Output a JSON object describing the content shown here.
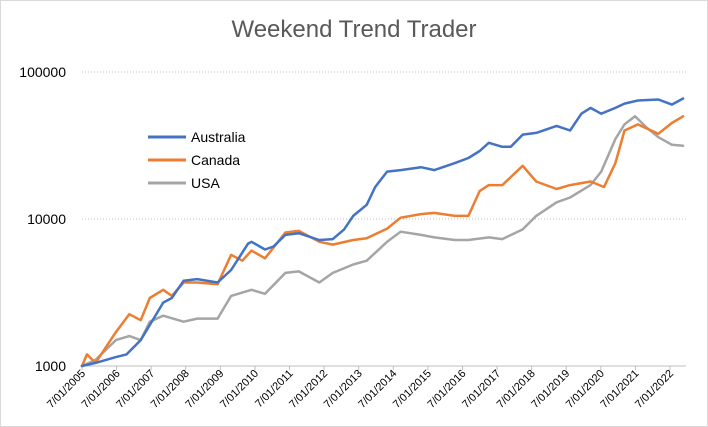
{
  "chart_data": {
    "type": "line",
    "title": "Weekend Trend Trader",
    "xlabel": "",
    "ylabel": "",
    "y_scale": "log",
    "ylim": [
      1000,
      100000
    ],
    "y_ticks": [
      "1000",
      "10000",
      "100000"
    ],
    "x_ticks": [
      "7/01/2005",
      "7/01/2006",
      "7/01/2007",
      "7/01/2008",
      "7/01/2009",
      "7/01/2010",
      "7/01/2011",
      "7/01/2012",
      "7/01/2013",
      "7/01/2014",
      "7/01/2015",
      "7/01/2016",
      "7/01/2017",
      "7/01/2018",
      "7/01/2019",
      "7/01/2020",
      "7/01/2021",
      "7/01/2022"
    ],
    "grid": "horizontal-dotted",
    "legend_position": "left",
    "series": [
      {
        "name": "Australia",
        "color": "#4472c4",
        "points": [
          [
            "2005-01-07",
            1000
          ],
          [
            "2005-06-01",
            1050
          ],
          [
            "2006-01-07",
            1150
          ],
          [
            "2006-05-01",
            1200
          ],
          [
            "2006-10-01",
            1500
          ],
          [
            "2007-01-07",
            1900
          ],
          [
            "2007-06-01",
            2700
          ],
          [
            "2007-09-01",
            2900
          ],
          [
            "2008-01-07",
            3800
          ],
          [
            "2008-06-01",
            3900
          ],
          [
            "2009-01-07",
            3700
          ],
          [
            "2009-06-01",
            4500
          ],
          [
            "2009-12-01",
            6800
          ],
          [
            "2010-01-07",
            7000
          ],
          [
            "2010-06-01",
            6200
          ],
          [
            "2010-09-01",
            6500
          ],
          [
            "2011-01-07",
            7800
          ],
          [
            "2011-06-01",
            8000
          ],
          [
            "2012-01-07",
            7200
          ],
          [
            "2012-06-01",
            7300
          ],
          [
            "2012-10-01",
            8500
          ],
          [
            "2013-01-07",
            10500
          ],
          [
            "2013-06-01",
            12500
          ],
          [
            "2013-09-01",
            16500
          ],
          [
            "2014-01-07",
            21000
          ],
          [
            "2014-06-01",
            21500
          ],
          [
            "2015-01-07",
            22500
          ],
          [
            "2015-06-01",
            21500
          ],
          [
            "2016-01-07",
            24000
          ],
          [
            "2016-06-01",
            26000
          ],
          [
            "2016-10-01",
            29000
          ],
          [
            "2017-01-07",
            33000
          ],
          [
            "2017-06-01",
            31000
          ],
          [
            "2017-09-01",
            31000
          ],
          [
            "2018-01-07",
            37500
          ],
          [
            "2018-06-01",
            38500
          ],
          [
            "2019-01-07",
            43000
          ],
          [
            "2019-06-01",
            40000
          ],
          [
            "2019-10-01",
            52000
          ],
          [
            "2020-01-07",
            57000
          ],
          [
            "2020-05-01",
            52000
          ],
          [
            "2020-10-01",
            57000
          ],
          [
            "2021-01-07",
            61000
          ],
          [
            "2021-06-01",
            64000
          ],
          [
            "2022-01-07",
            65000
          ],
          [
            "2022-06-01",
            60000
          ],
          [
            "2022-10-01",
            66000
          ]
        ]
      },
      {
        "name": "Canada",
        "color": "#ed7d31",
        "points": [
          [
            "2005-01-07",
            1000
          ],
          [
            "2005-03-01",
            1200
          ],
          [
            "2005-06-01",
            1050
          ],
          [
            "2006-01-07",
            1700
          ],
          [
            "2006-06-01",
            2250
          ],
          [
            "2006-10-01",
            2050
          ],
          [
            "2007-01-07",
            2900
          ],
          [
            "2007-06-01",
            3300
          ],
          [
            "2007-09-01",
            3000
          ],
          [
            "2008-01-07",
            3700
          ],
          [
            "2008-06-01",
            3700
          ],
          [
            "2009-01-07",
            3600
          ],
          [
            "2009-06-01",
            5700
          ],
          [
            "2009-10-01",
            5200
          ],
          [
            "2010-01-07",
            6100
          ],
          [
            "2010-06-01",
            5400
          ],
          [
            "2011-01-07",
            8100
          ],
          [
            "2011-06-01",
            8300
          ],
          [
            "2012-01-07",
            7000
          ],
          [
            "2012-06-01",
            6700
          ],
          [
            "2013-01-07",
            7200
          ],
          [
            "2013-06-01",
            7400
          ],
          [
            "2014-01-07",
            8600
          ],
          [
            "2014-06-01",
            10200
          ],
          [
            "2015-01-07",
            10800
          ],
          [
            "2015-06-01",
            11000
          ],
          [
            "2016-01-07",
            10500
          ],
          [
            "2016-06-01",
            10500
          ],
          [
            "2016-10-01",
            15500
          ],
          [
            "2017-01-07",
            17000
          ],
          [
            "2017-06-01",
            17000
          ],
          [
            "2018-01-07",
            23000
          ],
          [
            "2018-06-01",
            18000
          ],
          [
            "2019-01-07",
            16000
          ],
          [
            "2019-06-01",
            17000
          ],
          [
            "2020-01-07",
            18000
          ],
          [
            "2020-06-01",
            16500
          ],
          [
            "2020-10-01",
            24000
          ],
          [
            "2021-01-07",
            40000
          ],
          [
            "2021-06-01",
            44000
          ],
          [
            "2022-01-07",
            38000
          ],
          [
            "2022-06-01",
            45000
          ],
          [
            "2022-10-01",
            50000
          ]
        ]
      },
      {
        "name": "USA",
        "color": "#a5a5a5",
        "points": [
          [
            "2005-01-07",
            1000
          ],
          [
            "2005-06-01",
            1100
          ],
          [
            "2006-01-07",
            1500
          ],
          [
            "2006-06-01",
            1600
          ],
          [
            "2006-10-01",
            1500
          ],
          [
            "2007-01-07",
            2000
          ],
          [
            "2007-06-01",
            2200
          ],
          [
            "2008-01-07",
            2000
          ],
          [
            "2008-06-01",
            2100
          ],
          [
            "2009-01-07",
            2100
          ],
          [
            "2009-06-01",
            3000
          ],
          [
            "2010-01-07",
            3300
          ],
          [
            "2010-06-01",
            3100
          ],
          [
            "2011-01-07",
            4300
          ],
          [
            "2011-06-01",
            4400
          ],
          [
            "2012-01-07",
            3700
          ],
          [
            "2012-06-01",
            4300
          ],
          [
            "2013-01-07",
            4900
          ],
          [
            "2013-06-01",
            5200
          ],
          [
            "2014-01-07",
            7000
          ],
          [
            "2014-06-01",
            8200
          ],
          [
            "2015-01-07",
            7800
          ],
          [
            "2015-06-01",
            7500
          ],
          [
            "2016-01-07",
            7200
          ],
          [
            "2016-06-01",
            7200
          ],
          [
            "2017-01-07",
            7500
          ],
          [
            "2017-06-01",
            7300
          ],
          [
            "2018-01-07",
            8500
          ],
          [
            "2018-06-01",
            10500
          ],
          [
            "2019-01-07",
            13000
          ],
          [
            "2019-06-01",
            14000
          ],
          [
            "2020-01-07",
            17000
          ],
          [
            "2020-05-01",
            21000
          ],
          [
            "2020-10-01",
            35000
          ],
          [
            "2021-01-07",
            44000
          ],
          [
            "2021-05-01",
            50000
          ],
          [
            "2021-09-01",
            42000
          ],
          [
            "2022-01-07",
            36000
          ],
          [
            "2022-06-01",
            32000
          ],
          [
            "2022-10-01",
            31500
          ]
        ]
      }
    ]
  }
}
